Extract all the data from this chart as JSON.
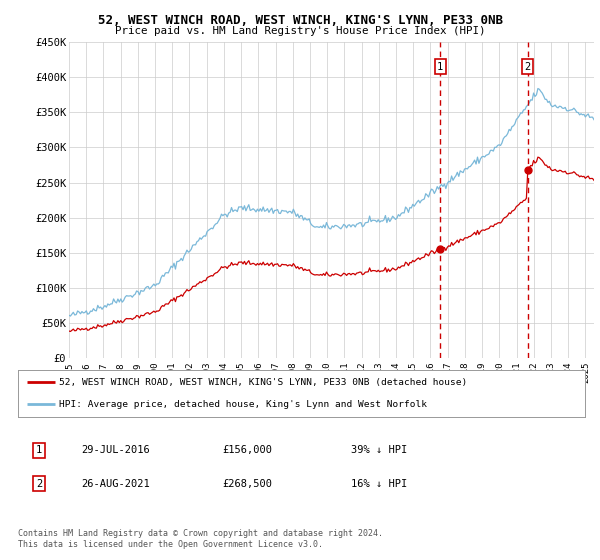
{
  "title_line1": "52, WEST WINCH ROAD, WEST WINCH, KING'S LYNN, PE33 0NB",
  "title_line2": "Price paid vs. HM Land Registry's House Price Index (HPI)",
  "ylabel_ticks": [
    "£0",
    "£50K",
    "£100K",
    "£150K",
    "£200K",
    "£250K",
    "£300K",
    "£350K",
    "£400K",
    "£450K"
  ],
  "ylim": [
    0,
    450000
  ],
  "xlim_start": 1995.0,
  "xlim_end": 2025.5,
  "purchase1_date": 2016.57,
  "purchase1_price": 156000,
  "purchase1_label": "1",
  "purchase2_date": 2021.65,
  "purchase2_price": 268500,
  "purchase2_label": "2",
  "hpi_color": "#7ab8d9",
  "price_color": "#cc0000",
  "vline_color": "#cc0000",
  "legend_label_red": "52, WEST WINCH ROAD, WEST WINCH, KING'S LYNN, PE33 0NB (detached house)",
  "legend_label_blue": "HPI: Average price, detached house, King's Lynn and West Norfolk",
  "table_row1": [
    "1",
    "29-JUL-2016",
    "£156,000",
    "39% ↓ HPI"
  ],
  "table_row2": [
    "2",
    "26-AUG-2021",
    "£268,500",
    "16% ↓ HPI"
  ],
  "footnote": "Contains HM Land Registry data © Crown copyright and database right 2024.\nThis data is licensed under the Open Government Licence v3.0.",
  "background_color": "#ffffff",
  "grid_color": "#cccccc"
}
